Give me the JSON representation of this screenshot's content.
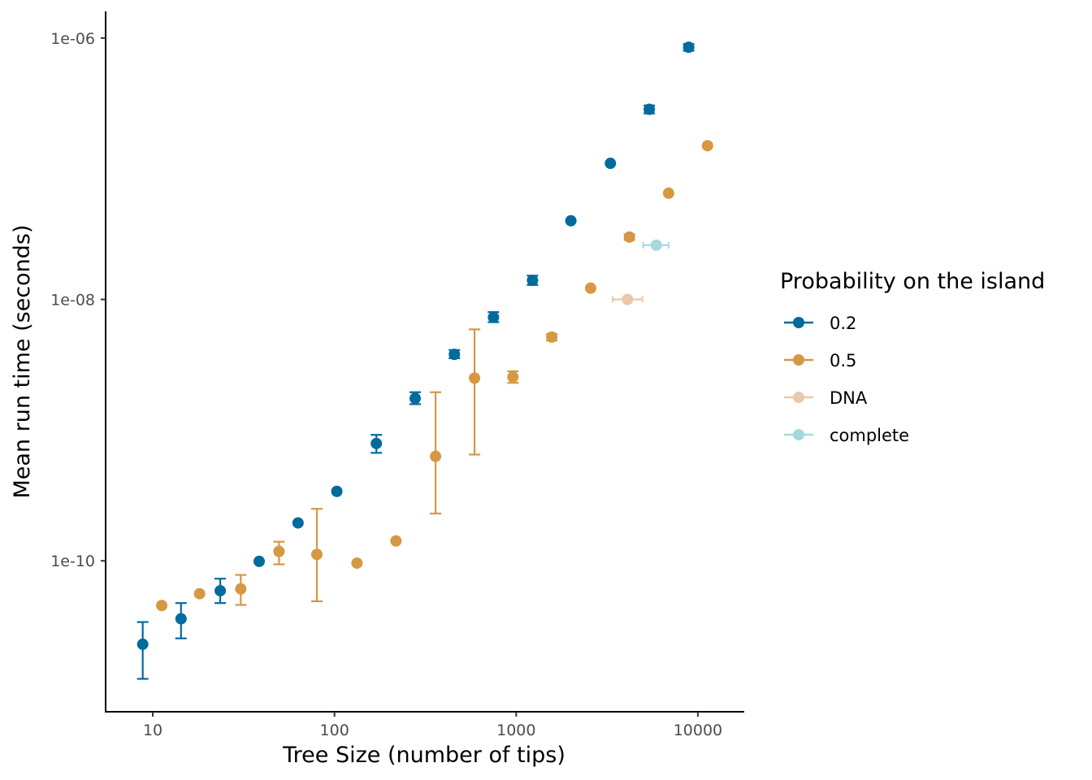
{
  "chart_data": {
    "type": "scatter",
    "xlabel": "Tree Size (number of tips)",
    "ylabel": "Mean run time (seconds)",
    "x_scale": "log10",
    "y_scale": "log10",
    "xlim": [
      5.5,
      18000
    ],
    "ylim": [
      7e-12,
      1.6e-06
    ],
    "x_ticks": [
      {
        "value": 10,
        "label": "10"
      },
      {
        "value": 100,
        "label": "100"
      },
      {
        "value": 1000,
        "label": "1000"
      },
      {
        "value": 10000,
        "label": "10000"
      }
    ],
    "y_ticks": [
      {
        "value": 1e-10,
        "label": "1e-10"
      },
      {
        "value": 1e-08,
        "label": "1e-08"
      },
      {
        "value": 1e-06,
        "label": "1e-06"
      }
    ],
    "grid": false,
    "legend": {
      "title": "Probability on the island",
      "position": "right"
    },
    "series": [
      {
        "name": "0.2",
        "color": "#006b9f",
        "points": [
          {
            "x": 8.8,
            "y": 2.3e-11,
            "ylo": 1.25e-11,
            "yhi": 3.4e-11
          },
          {
            "x": 14.3,
            "y": 3.6e-11,
            "ylo": 2.55e-11,
            "yhi": 4.75e-11
          },
          {
            "x": 23.5,
            "y": 5.9e-11,
            "ylo": 4.75e-11,
            "yhi": 7.3e-11
          },
          {
            "x": 38.5,
            "y": 9.9e-11
          },
          {
            "x": 63,
            "y": 1.95e-10
          },
          {
            "x": 103,
            "y": 3.4e-10
          },
          {
            "x": 170,
            "y": 7.9e-10,
            "ylo": 6.7e-10,
            "yhi": 9.2e-10
          },
          {
            "x": 278,
            "y": 1.75e-09,
            "ylo": 1.58e-09,
            "yhi": 1.95e-09
          },
          {
            "x": 457,
            "y": 3.8e-09,
            "ylo": 3.55e-09,
            "yhi": 4.1e-09
          },
          {
            "x": 750,
            "y": 7.3e-09,
            "ylo": 6.7e-09,
            "yhi": 8e-09
          },
          {
            "x": 1230,
            "y": 1.4e-08,
            "ylo": 1.29e-08,
            "yhi": 1.52e-08
          },
          {
            "x": 2000,
            "y": 4e-08
          },
          {
            "x": 3300,
            "y": 1.1e-07
          },
          {
            "x": 5400,
            "y": 2.85e-07,
            "ylo": 2.65e-07,
            "yhi": 3.05e-07
          },
          {
            "x": 8900,
            "y": 8.5e-07,
            "ylo": 8e-07,
            "yhi": 9e-07
          }
        ]
      },
      {
        "name": "0.5",
        "color": "#d69842",
        "points": [
          {
            "x": 11.2,
            "y": 4.55e-11
          },
          {
            "x": 18.1,
            "y": 5.6e-11
          },
          {
            "x": 30.5,
            "y": 6.1e-11,
            "ylo": 4.6e-11,
            "yhi": 7.8e-11
          },
          {
            "x": 49.5,
            "y": 1.18e-10,
            "ylo": 9.4e-11,
            "yhi": 1.4e-10
          },
          {
            "x": 80,
            "y": 1.12e-10,
            "ylo": 4.9e-11,
            "yhi": 2.5e-10
          },
          {
            "x": 133,
            "y": 9.6e-11
          },
          {
            "x": 218,
            "y": 1.42e-10
          },
          {
            "x": 360,
            "y": 6.3e-10,
            "ylo": 2.3e-10,
            "yhi": 1.95e-09
          },
          {
            "x": 590,
            "y": 2.5e-09,
            "ylo": 6.5e-10,
            "yhi": 5.9e-09
          },
          {
            "x": 960,
            "y": 2.55e-09,
            "ylo": 2.3e-09,
            "yhi": 2.82e-09
          },
          {
            "x": 1570,
            "y": 5.15e-09,
            "ylo": 4.85e-09,
            "yhi": 5.45e-09
          },
          {
            "x": 2570,
            "y": 1.22e-08
          },
          {
            "x": 4200,
            "y": 3e-08,
            "ylo": 2.85e-08,
            "yhi": 3.15e-08
          },
          {
            "x": 6900,
            "y": 6.5e-08
          },
          {
            "x": 11300,
            "y": 1.5e-07
          }
        ]
      },
      {
        "name": "DNA",
        "color": "#ebc7ab",
        "points": [
          {
            "x": 4100,
            "y": 1e-08,
            "xlo": 3400,
            "xhi": 4950
          }
        ]
      },
      {
        "name": "complete",
        "color": "#a6d9df",
        "points": [
          {
            "x": 5900,
            "y": 2.6e-08,
            "xlo": 5000,
            "xhi": 6900
          }
        ]
      }
    ]
  }
}
